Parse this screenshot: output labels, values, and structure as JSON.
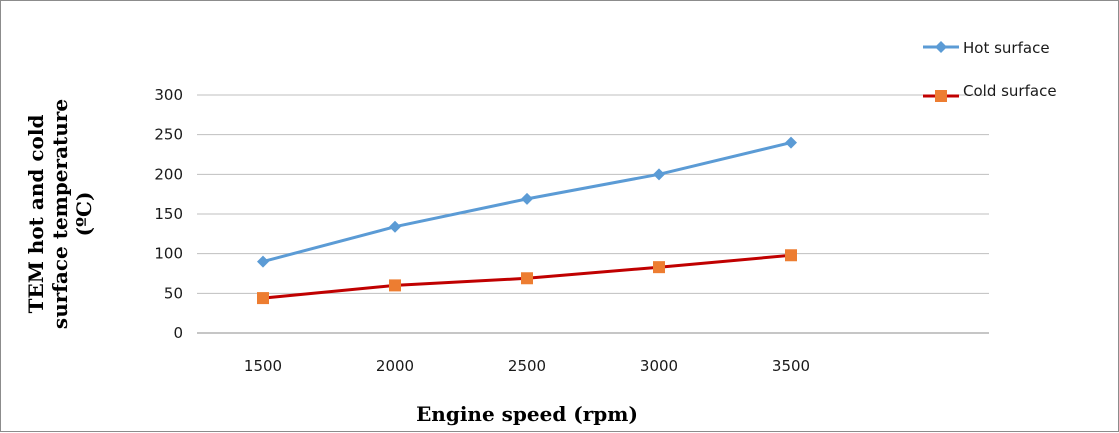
{
  "chart_data": {
    "type": "line",
    "title": "",
    "xlabel": "Engine  speed (rpm)",
    "ylabel_lines": [
      "TEM hot  and cold",
      "surface temperature",
      "(ºC)"
    ],
    "categories": [
      "1500",
      "2000",
      "2500",
      "3000",
      "3500"
    ],
    "ylim": [
      0,
      300
    ],
    "yticks": [
      0,
      50,
      100,
      150,
      200,
      250,
      300
    ],
    "grid": true,
    "legend_position": "top-right",
    "series": [
      {
        "name": "Hot surface",
        "values": [
          90,
          134,
          169,
          200,
          240
        ],
        "color": "#5b9bd5",
        "marker": "diamond"
      },
      {
        "name": "Cold surface",
        "values": [
          44,
          60,
          69,
          83,
          98
        ],
        "color": "#c00000",
        "marker_color": "#ed7d31",
        "marker": "square"
      }
    ]
  }
}
